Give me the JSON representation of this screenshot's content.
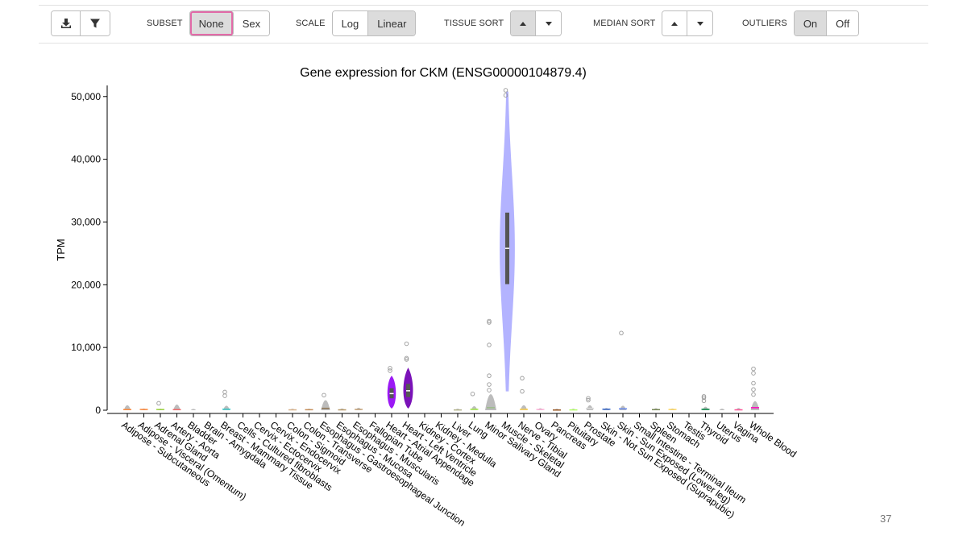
{
  "toolbar": {
    "subset": {
      "label": "SUBSET",
      "options": [
        "None",
        "Sex"
      ],
      "selected": "None"
    },
    "scale": {
      "label": "SCALE",
      "options": [
        "Log",
        "Linear"
      ],
      "selected": "Linear"
    },
    "tissue_sort": {
      "label": "TISSUE SORT",
      "selected": "up"
    },
    "median_sort": {
      "label": "MEDIAN SORT"
    },
    "outliers": {
      "label": "OUTLIERS",
      "options": [
        "On",
        "Off"
      ],
      "selected": "On"
    },
    "icons": [
      "download-icon",
      "filter-icon"
    ]
  },
  "page_number": "37",
  "chart_data": {
    "type": "violin",
    "title": "Gene expression for CKM (ENSG00000104879.4)",
    "ylabel": "TPM",
    "xlabel": "",
    "ylim": [
      0,
      51000
    ],
    "yticks": [
      0,
      10000,
      20000,
      30000,
      40000,
      50000
    ],
    "ytick_labels": [
      "0",
      "10,000",
      "20,000",
      "30,000",
      "40,000",
      "50,000"
    ],
    "grid": false,
    "categories": [
      "Adipose - Subcutaneous",
      "Adipose - Visceral (Omentum)",
      "Adrenal Gland",
      "Artery - Aorta",
      "Bladder",
      "Brain - Amygdala",
      "Breast - Mammary Tissue",
      "Cells - Cultured fibroblasts",
      "Cervix - Ectocervix",
      "Cervix - Endocervix",
      "Colon - Sigmoid",
      "Colon - Transverse",
      "Esophagus - Gastroesophageal Junction",
      "Esophagus - Mucosa",
      "Esophagus - Muscularis",
      "Fallopian Tube",
      "Heart - Atrial Appendage",
      "Heart - Left Ventricle",
      "Kidney - Cortex",
      "Kidney - Medulla",
      "Liver",
      "Lung",
      "Minor Salivary Gland",
      "Muscle - Skeletal",
      "Nerve - Tibial",
      "Ovary",
      "Pancreas",
      "Pituitary",
      "Prostate",
      "Skin - Not Sun Exposed (Suprapubic)",
      "Skin - Sun Exposed (Lower leg)",
      "Small Intestine - Terminal Ileum",
      "Spleen",
      "Stomach",
      "Testis",
      "Thyroid",
      "Uterus",
      "Vagina",
      "Whole Blood"
    ],
    "colors": [
      "#ff8a3d",
      "#ff8a3d",
      "#9bd33d",
      "#f26a6a",
      "#b0b0b0",
      "#f3e66a",
      "#33cccc",
      "#a8e0ff",
      "#ffcccc",
      "#ffcccc",
      "#d9b38c",
      "#c68f5b",
      "#8c7353",
      "#b89b6b",
      "#c9a77c",
      "#ffcccc",
      "#9b19f5",
      "#7a12b8",
      "#c8b6ff",
      "#c8b6ff",
      "#b3b38c",
      "#a8f04a",
      "#99bb88",
      "#9999ff",
      "#ffd24d",
      "#ffb3d9",
      "#995522",
      "#b3ff66",
      "#d9d9d9",
      "#3366cc",
      "#6688ee",
      "#555522",
      "#778855",
      "#ffd966",
      "#a6a6a6",
      "#008844",
      "#ff66ff",
      "#ff5599",
      "#ff00bb"
    ],
    "medians": [
      100,
      120,
      110,
      90,
      0,
      0,
      160,
      0,
      0,
      0,
      60,
      80,
      300,
      60,
      130,
      0,
      2650,
      3100,
      0,
      0,
      40,
      150,
      400,
      25800,
      140,
      120,
      30,
      50,
      300,
      160,
      220,
      0,
      90,
      120,
      0,
      140,
      0,
      60,
      400
    ],
    "maxima": [
      1000,
      350,
      300,
      1150,
      250,
      0,
      900,
      0,
      0,
      0,
      300,
      300,
      2000,
      350,
      500,
      0,
      5500,
      6800,
      0,
      0,
      300,
      800,
      3200,
      50800,
      1000,
      400,
      300,
      300,
      1000,
      450,
      900,
      0,
      400,
      350,
      0,
      700,
      300,
      450,
      1800
    ],
    "q1": [
      0,
      0,
      0,
      0,
      0,
      0,
      0,
      0,
      0,
      0,
      0,
      0,
      0,
      0,
      0,
      0,
      1900,
      2100,
      0,
      0,
      0,
      0,
      0,
      20100,
      0,
      0,
      0,
      0,
      0,
      0,
      0,
      0,
      0,
      0,
      0,
      0,
      0,
      0,
      0
    ],
    "q3": [
      0,
      0,
      0,
      0,
      0,
      0,
      0,
      0,
      0,
      0,
      0,
      0,
      0,
      0,
      0,
      0,
      3500,
      4200,
      0,
      0,
      0,
      0,
      0,
      31500,
      0,
      0,
      0,
      0,
      0,
      0,
      0,
      0,
      0,
      0,
      0,
      0,
      0,
      0,
      0
    ],
    "outliers": [
      [],
      [],
      [
        1100
      ],
      [],
      [],
      [],
      [
        2300,
        2900
      ],
      [],
      [],
      [],
      [],
      [],
      [
        2400
      ],
      [],
      [],
      [],
      [
        6300,
        6700
      ],
      [
        8100,
        8300,
        10600
      ],
      [],
      [],
      [],
      [
        2600
      ],
      [
        3200,
        4100,
        5500,
        10400,
        14000,
        14200
      ],
      [
        50200,
        51000
      ],
      [
        3000,
        5100
      ],
      [],
      [],
      [],
      [
        1600,
        1900
      ],
      [],
      [
        12300
      ],
      [],
      [],
      [],
      [],
      [
        1500,
        2000,
        2200
      ],
      [],
      [],
      [
        2500,
        3300,
        4300,
        5900,
        6600
      ]
    ]
  }
}
